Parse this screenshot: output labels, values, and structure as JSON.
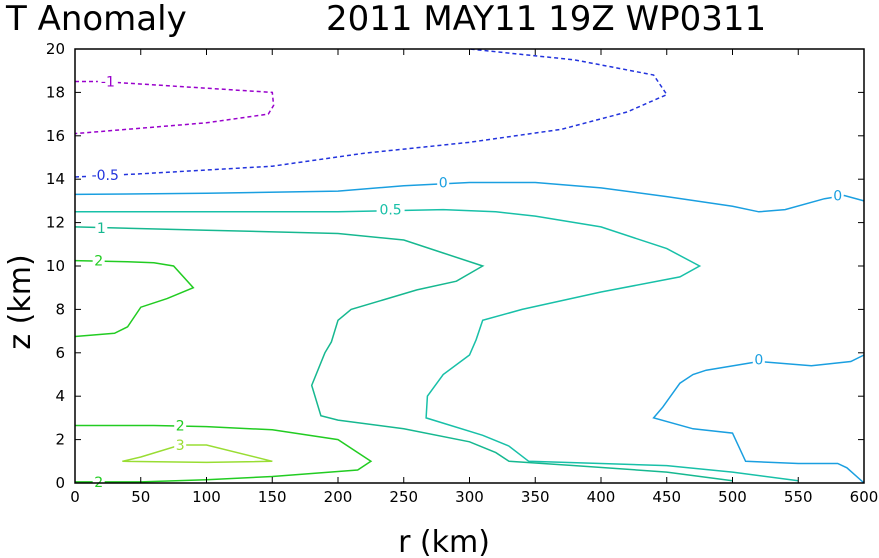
{
  "chart_data": {
    "type": "contour",
    "title_left": "T Anomaly",
    "title_right": "2011 MAY11 19Z   WP0311",
    "xlabel": "r (km)",
    "ylabel": "z (km)",
    "xlim": [
      0,
      600
    ],
    "ylim": [
      0,
      20
    ],
    "xticks": [
      "0",
      "50",
      "100",
      "150",
      "200",
      "250",
      "300",
      "350",
      "400",
      "450",
      "500",
      "550",
      "600"
    ],
    "yticks": [
      "0",
      "2",
      "4",
      "6",
      "8",
      "10",
      "12",
      "14",
      "16",
      "18",
      "20"
    ],
    "grid": false,
    "contours": [
      {
        "level": -1,
        "color": "#9900cc",
        "dashed": true,
        "points": [
          [
            0,
            18.5
          ],
          [
            20,
            18.5
          ],
          [
            150,
            18.0
          ],
          [
            151,
            17.4
          ],
          [
            147,
            17.0
          ],
          [
            100,
            16.6
          ],
          [
            0,
            16.1
          ]
        ],
        "labels": [
          {
            "text": "-1",
            "x": 25,
            "y": 18.5
          }
        ]
      },
      {
        "level": -0.5,
        "color": "#2233dd",
        "dashed": true,
        "points": [
          [
            0,
            14.1
          ],
          [
            50,
            14.25
          ],
          [
            150,
            14.6
          ],
          [
            220,
            15.2
          ],
          [
            300,
            15.7
          ],
          [
            370,
            16.3
          ],
          [
            420,
            17.1
          ],
          [
            450,
            17.9
          ],
          [
            440,
            18.8
          ],
          [
            380,
            19.5
          ],
          [
            300,
            20.0
          ]
        ],
        "labels": [
          {
            "text": "-0.5",
            "x": 23,
            "y": 14.2
          }
        ]
      },
      {
        "level": 0,
        "color": "#1a9fe0",
        "dashed": false,
        "points": [
          [
            0,
            13.3
          ],
          [
            100,
            13.35
          ],
          [
            200,
            13.45
          ],
          [
            250,
            13.7
          ],
          [
            300,
            13.85
          ],
          [
            350,
            13.85
          ],
          [
            400,
            13.6
          ],
          [
            450,
            13.2
          ],
          [
            500,
            12.75
          ],
          [
            520,
            12.5
          ],
          [
            540,
            12.6
          ],
          [
            570,
            13.1
          ],
          [
            585,
            13.25
          ],
          [
            600,
            13.0
          ]
        ],
        "labels": [
          {
            "text": "0",
            "x": 280,
            "y": 13.85
          },
          {
            "text": "0",
            "x": 580,
            "y": 13.25
          }
        ]
      },
      {
        "level": 0,
        "color": "#1a9fe0",
        "dashed": false,
        "points": [
          [
            600,
            5.9
          ],
          [
            590,
            5.6
          ],
          [
            560,
            5.4
          ],
          [
            520,
            5.6
          ],
          [
            480,
            5.2
          ],
          [
            470,
            5.0
          ],
          [
            460,
            4.6
          ],
          [
            447,
            3.5
          ],
          [
            440,
            3.0
          ],
          [
            470,
            2.5
          ],
          [
            500,
            2.3
          ],
          [
            510,
            1.0
          ],
          [
            550,
            0.9
          ],
          [
            580,
            0.9
          ],
          [
            587,
            0.7
          ],
          [
            600,
            0.0
          ]
        ],
        "labels": [
          {
            "text": "0",
            "x": 520,
            "y": 5.7
          }
        ]
      },
      {
        "level": 0.5,
        "color": "#18c0a8",
        "dashed": false,
        "points": [
          [
            0,
            12.5
          ],
          [
            100,
            12.5
          ],
          [
            200,
            12.5
          ],
          [
            280,
            12.6
          ],
          [
            320,
            12.5
          ],
          [
            350,
            12.3
          ],
          [
            400,
            11.8
          ],
          [
            450,
            10.8
          ],
          [
            475,
            10.0
          ],
          [
            460,
            9.5
          ],
          [
            400,
            8.8
          ],
          [
            340,
            8.0
          ],
          [
            310,
            7.5
          ],
          [
            305,
            6.6
          ],
          [
            300,
            5.9
          ],
          [
            280,
            5.0
          ],
          [
            268,
            4.0
          ],
          [
            267,
            3.0
          ],
          [
            310,
            2.2
          ],
          [
            330,
            1.7
          ],
          [
            345,
            1.0
          ],
          [
            400,
            0.9
          ],
          [
            450,
            0.8
          ],
          [
            500,
            0.5
          ],
          [
            550,
            0.1
          ]
        ],
        "labels": [
          {
            "text": "0.5",
            "x": 240,
            "y": 12.6
          }
        ]
      },
      {
        "level": 1,
        "color": "#16b890",
        "dashed": false,
        "points": [
          [
            0,
            11.8
          ],
          [
            100,
            11.65
          ],
          [
            200,
            11.5
          ],
          [
            250,
            11.2
          ],
          [
            280,
            10.6
          ],
          [
            310,
            10.0
          ],
          [
            290,
            9.3
          ],
          [
            260,
            8.9
          ],
          [
            210,
            8.0
          ],
          [
            200,
            7.5
          ],
          [
            195,
            6.5
          ],
          [
            190,
            6.0
          ],
          [
            180,
            4.5
          ],
          [
            187,
            3.1
          ],
          [
            200,
            2.9
          ],
          [
            250,
            2.5
          ],
          [
            300,
            1.9
          ],
          [
            320,
            1.4
          ],
          [
            330,
            1.0
          ],
          [
            380,
            0.8
          ],
          [
            450,
            0.5
          ],
          [
            500,
            0.1
          ]
        ],
        "labels": [
          {
            "text": "1",
            "x": 20,
            "y": 11.75
          }
        ]
      },
      {
        "level": 2,
        "color": "#22cc22",
        "dashed": false,
        "points": [
          [
            0,
            10.25
          ],
          [
            40,
            10.2
          ],
          [
            60,
            10.15
          ],
          [
            75,
            10.0
          ],
          [
            90,
            9.0
          ],
          [
            70,
            8.5
          ],
          [
            50,
            8.1
          ],
          [
            40,
            7.2
          ],
          [
            30,
            6.9
          ],
          [
            0,
            6.75
          ]
        ],
        "labels": [
          {
            "text": "2",
            "x": 18,
            "y": 10.25
          }
        ]
      },
      {
        "level": 2,
        "color": "#22cc22",
        "dashed": false,
        "points": [
          [
            0,
            2.65
          ],
          [
            60,
            2.65
          ],
          [
            100,
            2.6
          ],
          [
            150,
            2.45
          ],
          [
            200,
            2.0
          ],
          [
            225,
            1.0
          ],
          [
            215,
            0.6
          ],
          [
            150,
            0.3
          ],
          [
            100,
            0.15
          ],
          [
            50,
            0.05
          ],
          [
            0,
            0.05
          ]
        ],
        "labels": [
          {
            "text": "2",
            "x": 80,
            "y": 2.65
          },
          {
            "text": "2",
            "x": 18,
            "y": 0.05
          }
        ]
      },
      {
        "level": 3,
        "color": "#99dd33",
        "dashed": false,
        "points": [
          [
            36,
            1.0
          ],
          [
            50,
            1.2
          ],
          [
            80,
            1.75
          ],
          [
            100,
            1.75
          ],
          [
            150,
            1.0
          ],
          [
            100,
            0.95
          ],
          [
            36,
            1.0
          ]
        ],
        "labels": [
          {
            "text": "3",
            "x": 80,
            "y": 1.75
          }
        ]
      }
    ]
  }
}
